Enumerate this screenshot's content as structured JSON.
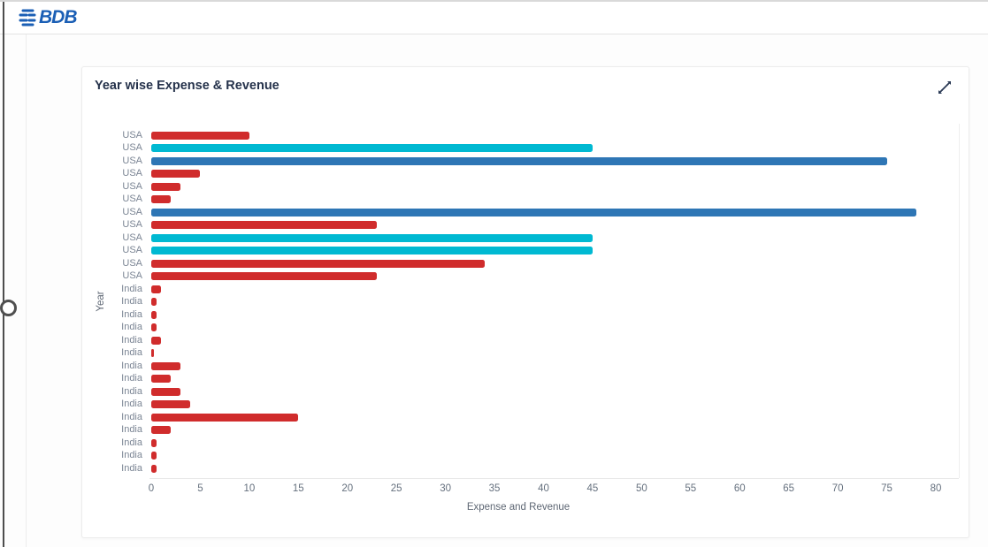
{
  "header": {
    "logo_text": "BDB"
  },
  "card": {
    "title": "Year wise Expense & Revenue"
  },
  "icons": {
    "expand": "expand-diagonal-arrows-icon",
    "logo": "bdb-logo"
  },
  "chart_data": {
    "type": "bar",
    "orientation": "horizontal",
    "title": "Year wise Expense & Revenue",
    "xlabel": "Expense and Revenue",
    "ylabel": "Year",
    "xlim": [
      0,
      80
    ],
    "ticks": [
      0,
      5,
      10,
      15,
      20,
      25,
      30,
      35,
      40,
      45,
      50,
      55,
      60,
      65,
      70,
      75,
      80
    ],
    "grid": false,
    "legend": "none",
    "colors": {
      "red": "#d02c2c",
      "cyan": "#00b9d2",
      "blue": "#2e76b5"
    },
    "rows": [
      {
        "label": "USA",
        "value": 10,
        "series": "red"
      },
      {
        "label": "USA",
        "value": 45,
        "series": "cyan"
      },
      {
        "label": "USA",
        "value": 75,
        "series": "blue"
      },
      {
        "label": "USA",
        "value": 5,
        "series": "red"
      },
      {
        "label": "USA",
        "value": 3,
        "series": "red"
      },
      {
        "label": "USA",
        "value": 2,
        "series": "red"
      },
      {
        "label": "USA",
        "value": 78,
        "series": "blue"
      },
      {
        "label": "USA",
        "value": 23,
        "series": "red"
      },
      {
        "label": "USA",
        "value": 45,
        "series": "cyan"
      },
      {
        "label": "USA",
        "value": 45,
        "series": "cyan"
      },
      {
        "label": "USA",
        "value": 34,
        "series": "red"
      },
      {
        "label": "USA",
        "value": 23,
        "series": "red"
      },
      {
        "label": "India",
        "value": 1,
        "series": "red"
      },
      {
        "label": "India",
        "value": 0.5,
        "series": "red"
      },
      {
        "label": "India",
        "value": 0.5,
        "series": "red"
      },
      {
        "label": "India",
        "value": 0.5,
        "series": "red"
      },
      {
        "label": "India",
        "value": 1,
        "series": "red"
      },
      {
        "label": "India",
        "value": 0.3,
        "series": "red"
      },
      {
        "label": "India",
        "value": 3,
        "series": "red"
      },
      {
        "label": "India",
        "value": 2,
        "series": "red"
      },
      {
        "label": "India",
        "value": 3,
        "series": "red"
      },
      {
        "label": "India",
        "value": 4,
        "series": "red"
      },
      {
        "label": "India",
        "value": 15,
        "series": "red"
      },
      {
        "label": "India",
        "value": 2,
        "series": "red"
      },
      {
        "label": "India",
        "value": 0.5,
        "series": "red"
      },
      {
        "label": "India",
        "value": 0.5,
        "series": "red"
      },
      {
        "label": "India",
        "value": 0.5,
        "series": "red"
      }
    ]
  }
}
